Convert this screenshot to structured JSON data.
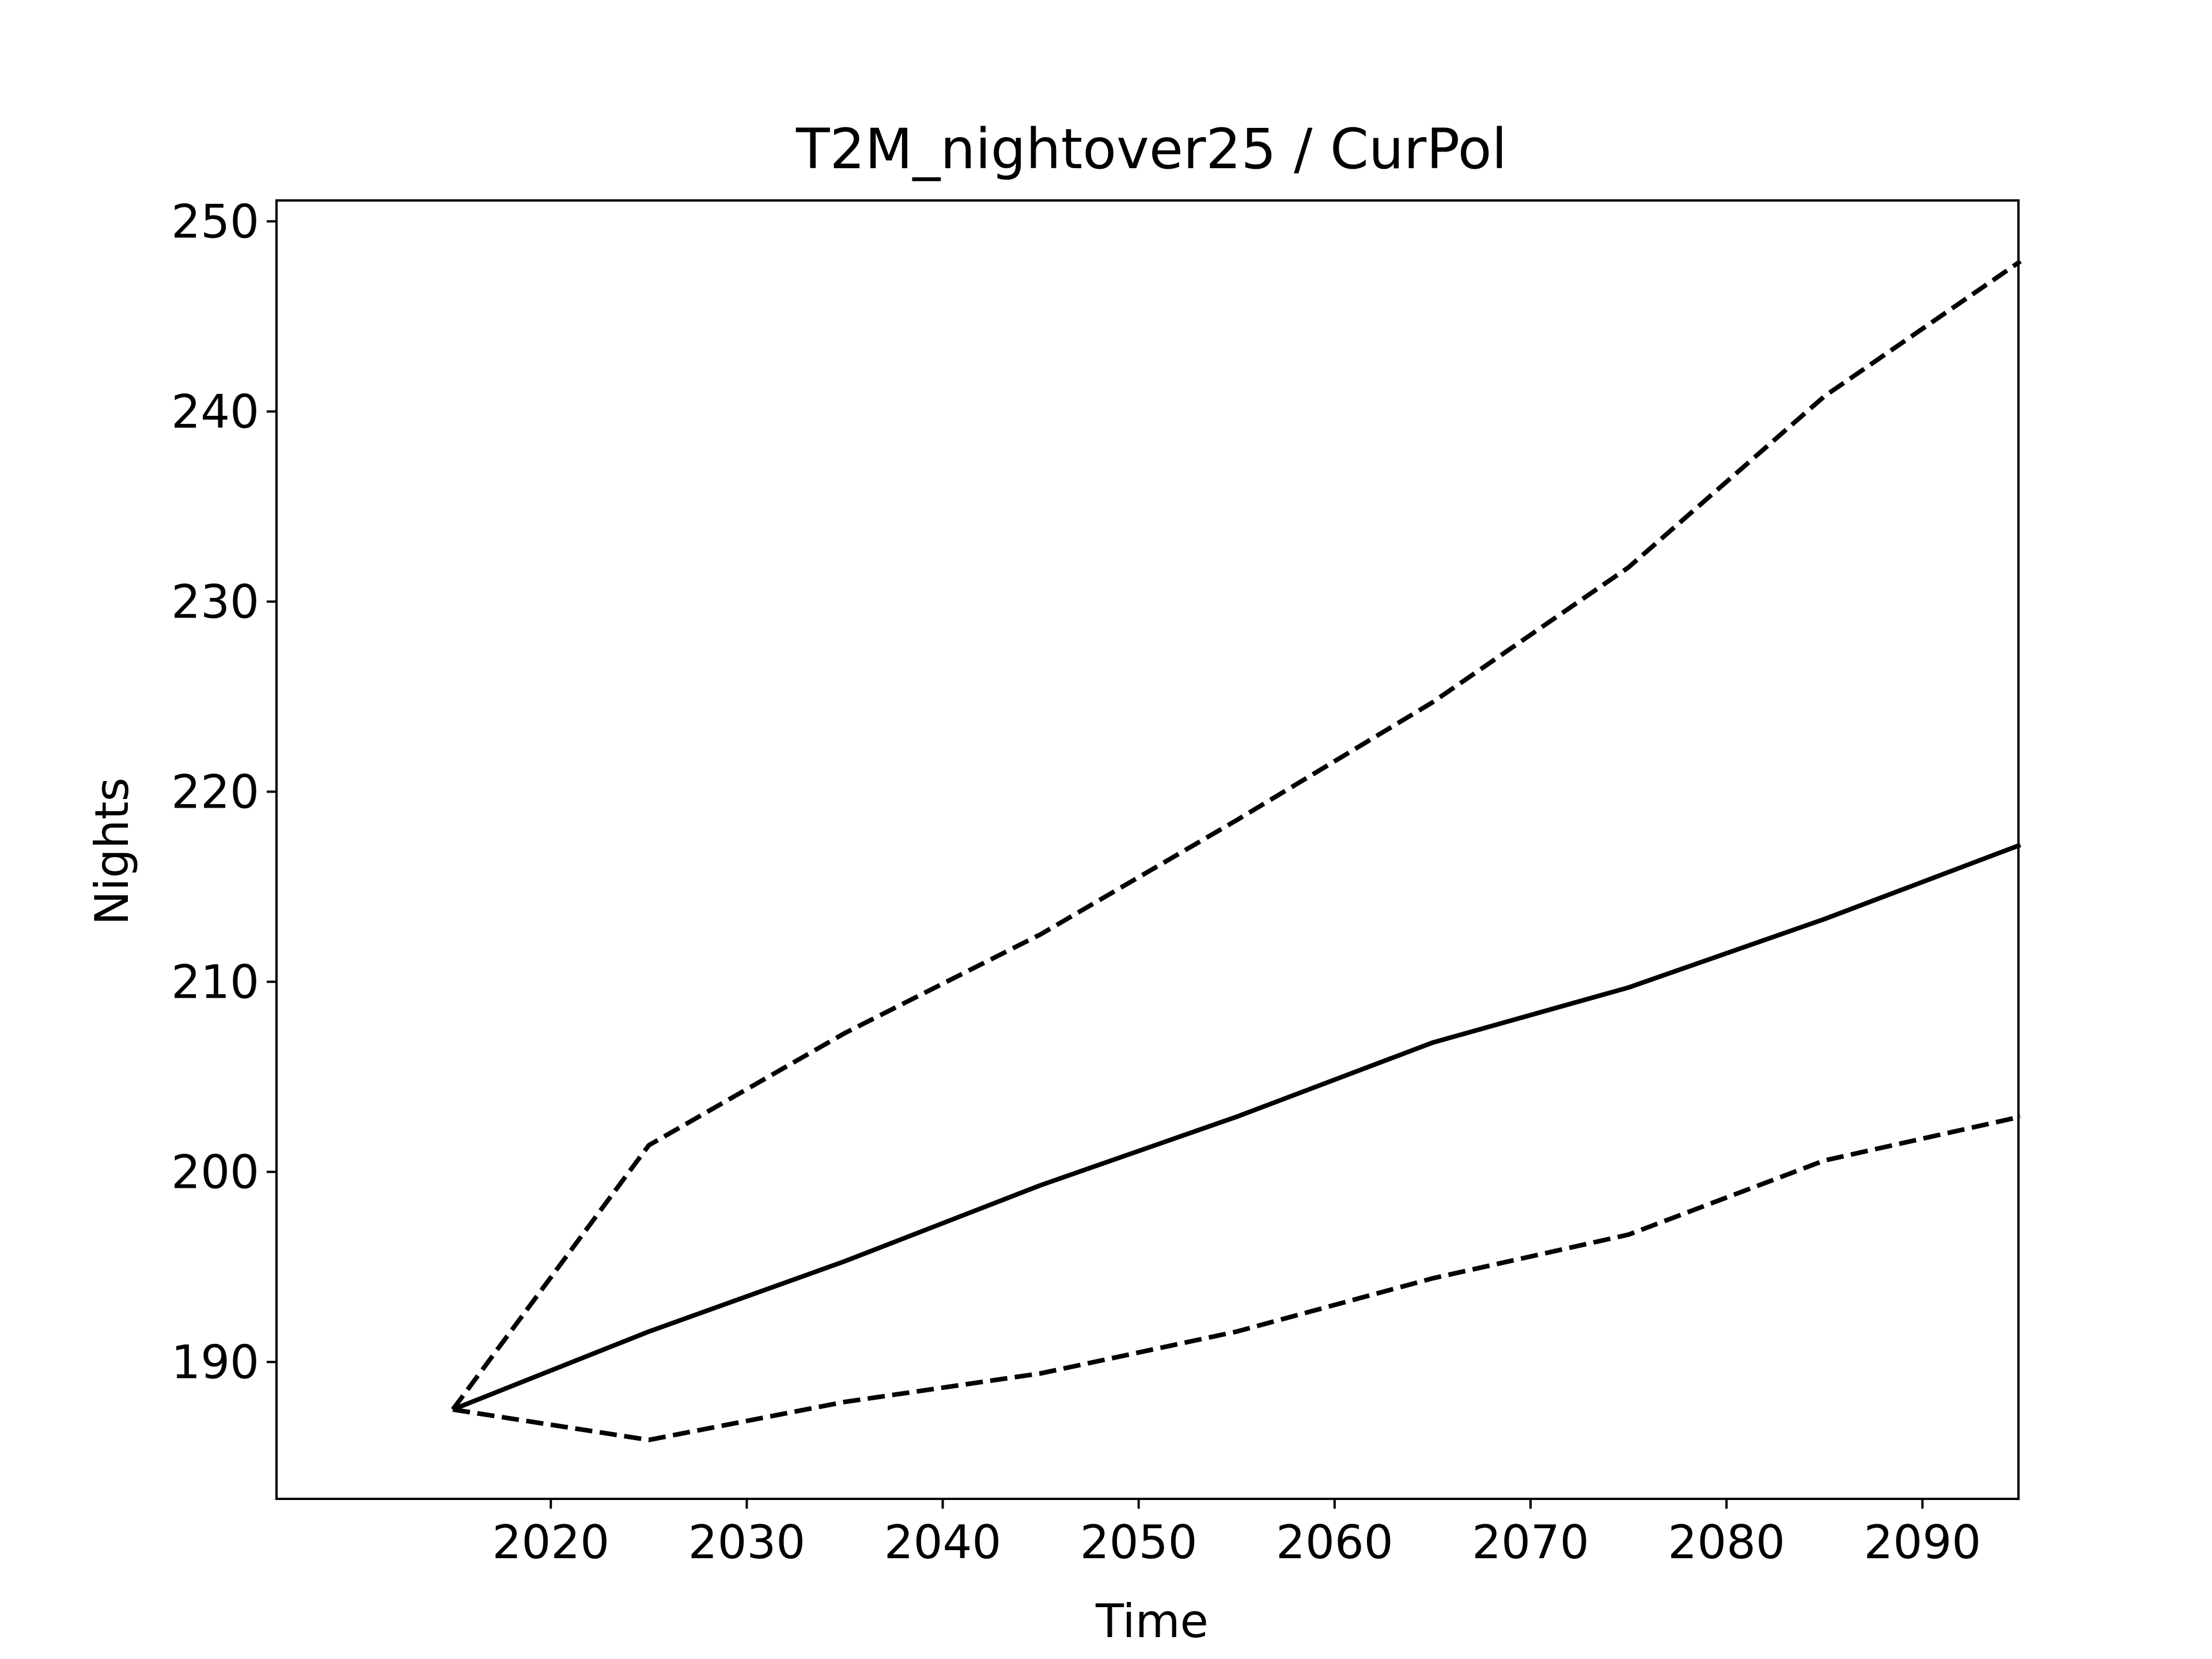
{
  "chart_data": {
    "type": "line",
    "title": "T2M_nightover25 / CurPol",
    "xlabel": "Time",
    "ylabel": "Nights",
    "x": [
      2015,
      2025,
      2035,
      2045,
      2055,
      2065,
      2075,
      2085,
      2095
    ],
    "xlim": [
      2006,
      2094.9
    ],
    "ylim": [
      182.8,
      251.1
    ],
    "xticks": [
      2020,
      2030,
      2040,
      2050,
      2060,
      2070,
      2080,
      2090
    ],
    "yticks": [
      190,
      200,
      210,
      220,
      230,
      240,
      250
    ],
    "grid": false,
    "series": [
      {
        "style": "solid",
        "color": "#000000",
        "values": [
          187.5,
          191.6,
          195.3,
          199.3,
          202.9,
          206.8,
          209.7,
          213.3,
          217.2
        ]
      },
      {
        "style": "dashed",
        "color": "#000000",
        "values": [
          187.5,
          201.4,
          207.3,
          212.5,
          218.5,
          224.7,
          231.8,
          240.8,
          247.9
        ]
      },
      {
        "style": "dashed",
        "color": "#000000",
        "values": [
          187.5,
          185.9,
          187.9,
          189.4,
          191.6,
          194.4,
          196.7,
          200.6,
          202.9
        ]
      }
    ]
  }
}
